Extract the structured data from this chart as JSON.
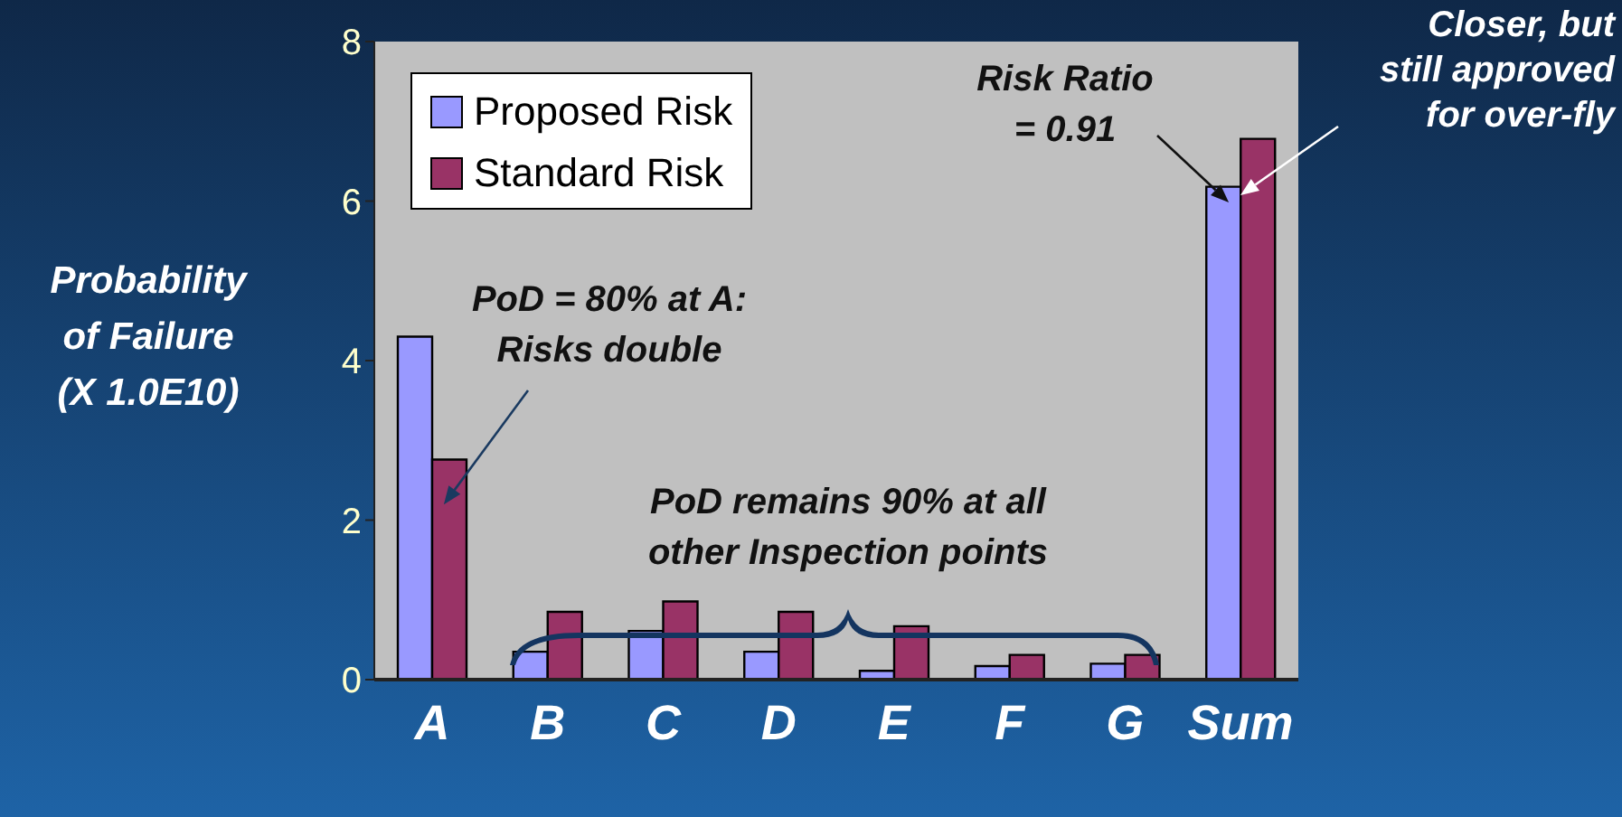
{
  "chart_data": {
    "type": "bar",
    "ylabel": "Probability\nof Failure\n(X 1.0E10)",
    "categories": [
      "A",
      "B",
      "C",
      "D",
      "E",
      "F",
      "G",
      "Sum"
    ],
    "series": [
      {
        "name": "Proposed Risk",
        "color": "#9999ff",
        "values": [
          4.3,
          0.35,
          0.61,
          0.35,
          0.11,
          0.17,
          0.2,
          6.18
        ]
      },
      {
        "name": "Standard Risk",
        "color": "#993366",
        "values": [
          2.76,
          0.85,
          0.98,
          0.85,
          0.67,
          0.31,
          0.31,
          6.78
        ]
      }
    ],
    "ylim": [
      0,
      8
    ],
    "yticks": [
      0,
      2,
      4,
      6,
      8
    ],
    "grid": false,
    "legend": "top left",
    "annotations": [
      {
        "text": "PoD = 80% at A:\nRisks double",
        "x": "A",
        "y": 2.76
      },
      "PoD remains 90% at all\nother Inspection points",
      {
        "text": "Risk Ratio\n= 0.91",
        "x": "Sum",
        "y": 6.18
      },
      "Closer, but\nstill approved\nfor over-fly"
    ]
  }
}
